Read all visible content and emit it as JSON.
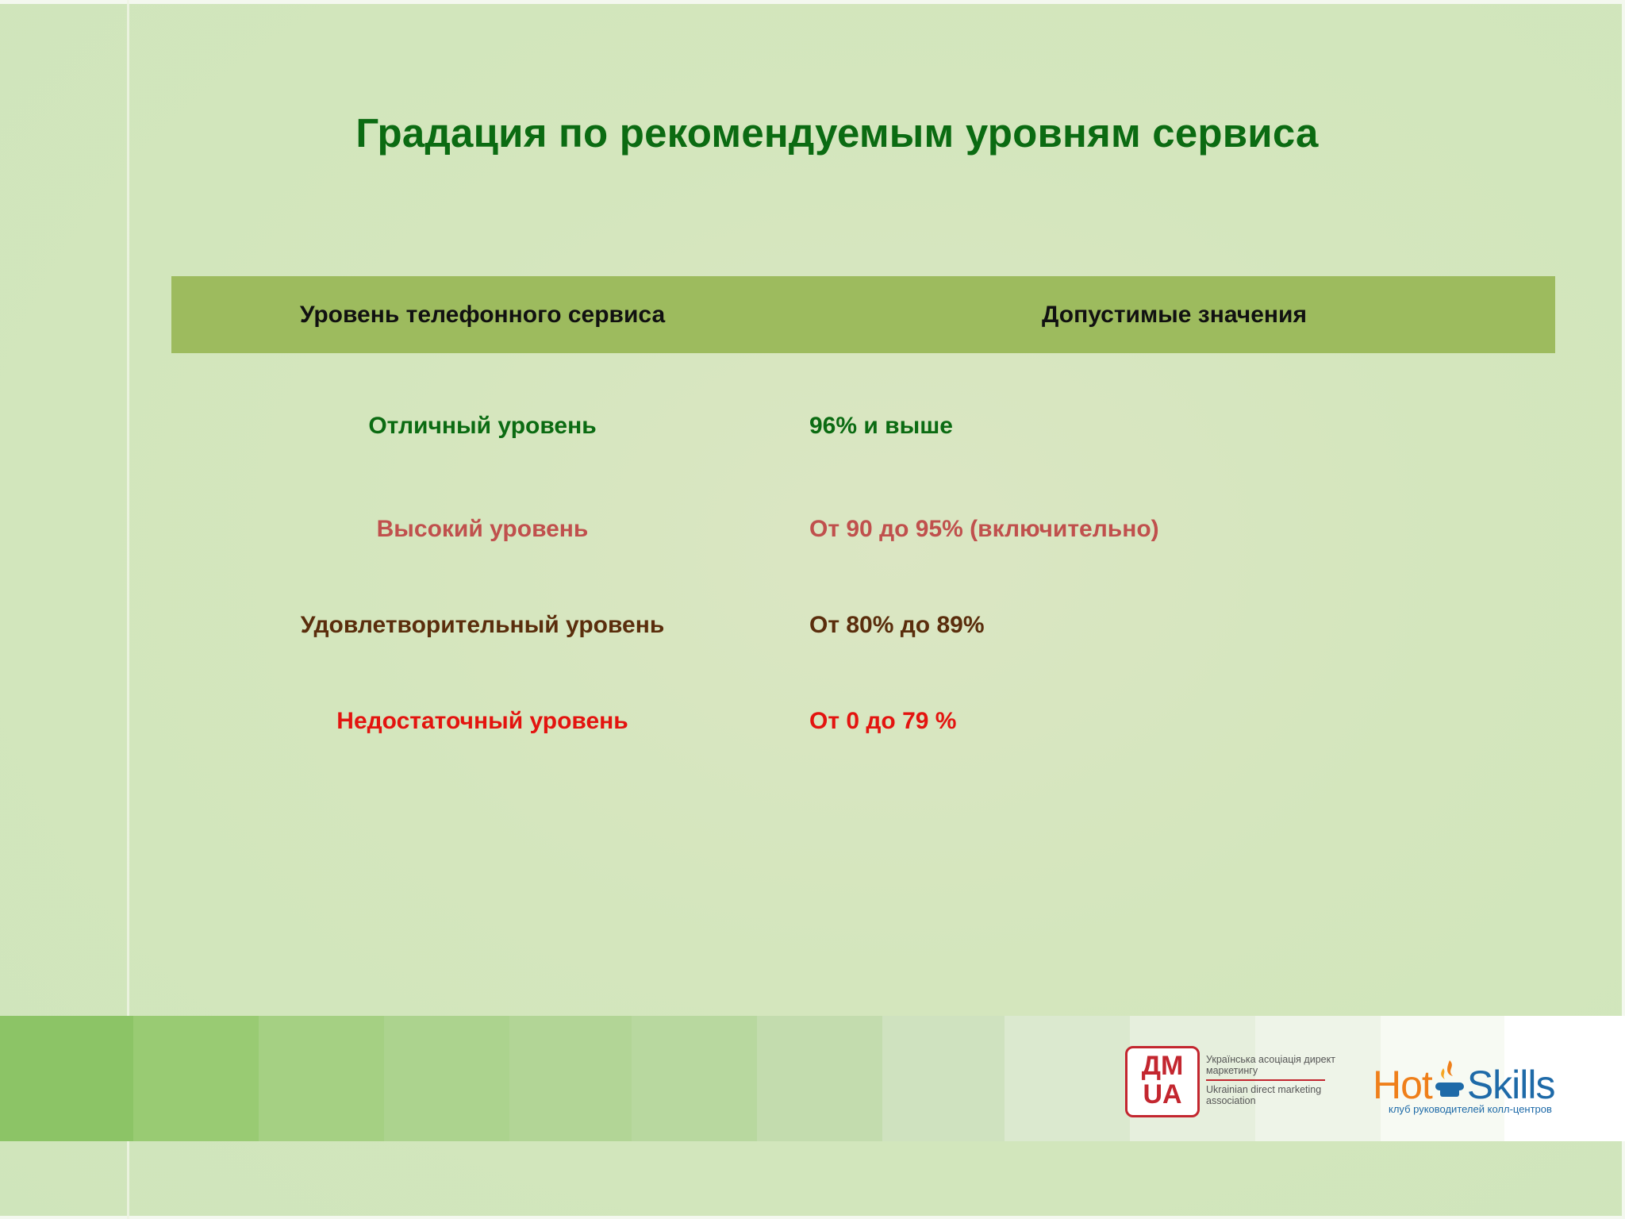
{
  "slide": {
    "title": "Градация по рекомендуемым уровням сервиса"
  },
  "table": {
    "headers": [
      "Уровень телефонного сервиса",
      "Допустимые значения"
    ],
    "rows": [
      {
        "level": "Отличный уровень",
        "value": "96% и выше",
        "color": "#0b6b12"
      },
      {
        "level": "Высокий уровень",
        "value": "От 90 до 95% (включительно)",
        "color": "#c0504d"
      },
      {
        "level": "Удовлетворительный уровень",
        "value": "От 80%  до 89%",
        "color": "#5a2d0c"
      },
      {
        "level": "Недостаточный уровень",
        "value": "От 0 до 79 %",
        "color": "#e3140f"
      }
    ]
  },
  "logos": {
    "dma": {
      "line1": "ДМ",
      "line2": "UA",
      "text_ua": "Українська асоціація директ маркетингу",
      "text_en": "Ukrainian direct marketing association"
    },
    "hotskills": {
      "hot": "Hot",
      "skills": "Skills",
      "tagline": "клуб руководителей колл-центров",
      "icon": "phone-fire-icon"
    }
  }
}
